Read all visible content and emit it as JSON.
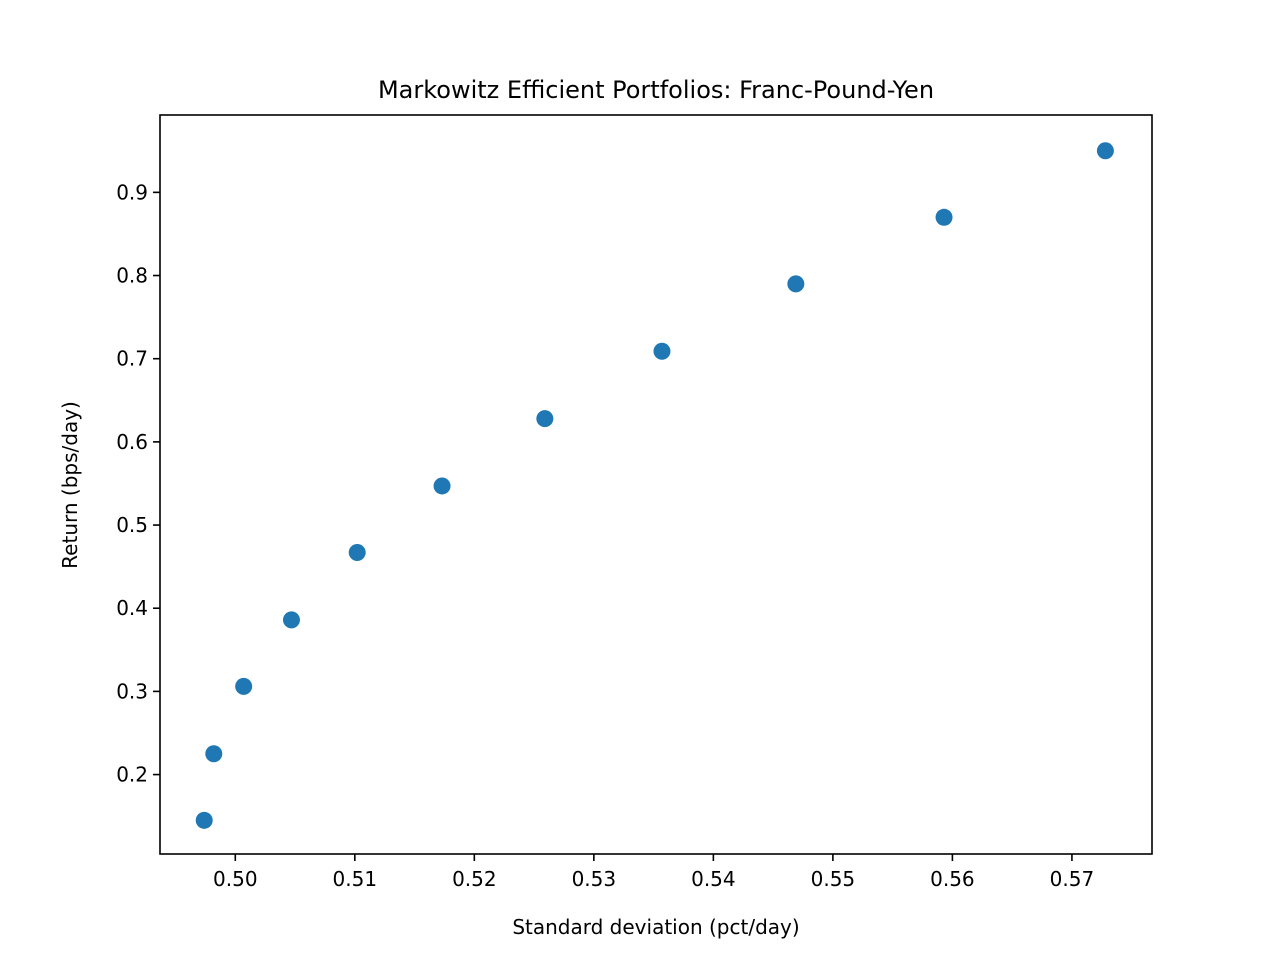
{
  "chart_data": {
    "type": "scatter",
    "title": "Markowitz Efficient Portfolios: Franc-Pound-Yen",
    "xlabel": "Standard deviation (pct/day)",
    "ylabel": "Return (bps/day)",
    "xlim": [
      0.4937,
      0.5767
    ],
    "ylim": [
      0.1045,
      0.993
    ],
    "xticks": [
      "0.50",
      "0.51",
      "0.52",
      "0.53",
      "0.54",
      "0.55",
      "0.56",
      "0.57"
    ],
    "yticks": [
      "0.2",
      "0.3",
      "0.4",
      "0.5",
      "0.6",
      "0.7",
      "0.8",
      "0.9"
    ],
    "grid": false,
    "marker_color": "#1f77b4",
    "series": [
      {
        "points": [
          {
            "x": 0.4974,
            "y": 0.145
          },
          {
            "x": 0.4982,
            "y": 0.225
          },
          {
            "x": 0.5007,
            "y": 0.306
          },
          {
            "x": 0.5047,
            "y": 0.386
          },
          {
            "x": 0.5102,
            "y": 0.467
          },
          {
            "x": 0.5173,
            "y": 0.547
          },
          {
            "x": 0.5259,
            "y": 0.628
          },
          {
            "x": 0.5357,
            "y": 0.709
          },
          {
            "x": 0.5469,
            "y": 0.79
          },
          {
            "x": 0.5593,
            "y": 0.87
          },
          {
            "x": 0.5728,
            "y": 0.95
          }
        ]
      }
    ]
  }
}
